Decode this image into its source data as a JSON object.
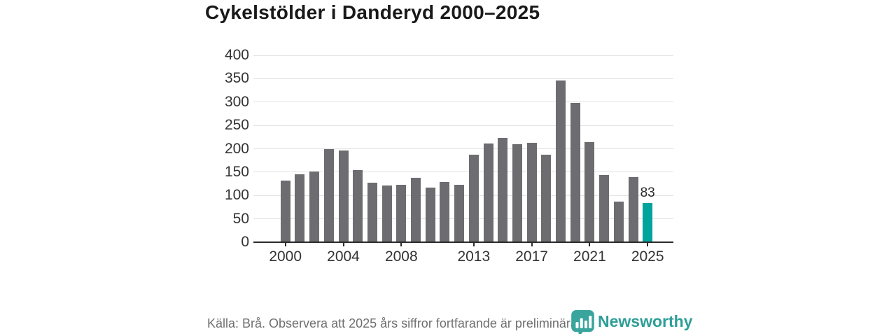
{
  "title": "Cykelstölder i Danderyd 2000–2025",
  "footer": {
    "source_note": "Källa: Brå. Observera att 2025 års siffror fortfarande är preliminära.",
    "brand": "Newsworthy"
  },
  "colors": {
    "bar": "#6c6c71",
    "highlight": "#00a49c",
    "axis": "#2b2b2b",
    "grid": "#e3e3e3",
    "tick_text": "#333333",
    "footer_text": "#6f6f6f",
    "brand_teal": "#2d9e97"
  },
  "chart_data": {
    "type": "bar",
    "title": "Cykelstölder i Danderyd 2000–2025",
    "x": [
      2000,
      2001,
      2002,
      2003,
      2004,
      2005,
      2006,
      2007,
      2008,
      2009,
      2010,
      2011,
      2012,
      2013,
      2014,
      2015,
      2016,
      2017,
      2018,
      2019,
      2020,
      2021,
      2022,
      2023,
      2024,
      2025
    ],
    "values": [
      130,
      144,
      150,
      198,
      195,
      153,
      126,
      120,
      121,
      136,
      116,
      127,
      121,
      186,
      210,
      221,
      208,
      211,
      186,
      345,
      296,
      213,
      143,
      85,
      138,
      83
    ],
    "highlight": {
      "year": 2025,
      "value": 83,
      "label": "83"
    },
    "ylim": [
      0,
      400
    ],
    "yticks": [
      0,
      50,
      100,
      150,
      200,
      250,
      300,
      350,
      400
    ],
    "xticks": [
      2000,
      2004,
      2008,
      2013,
      2017,
      2021,
      2025
    ],
    "grid": "horizontal",
    "legend": "none",
    "xlabel": "",
    "ylabel": ""
  }
}
